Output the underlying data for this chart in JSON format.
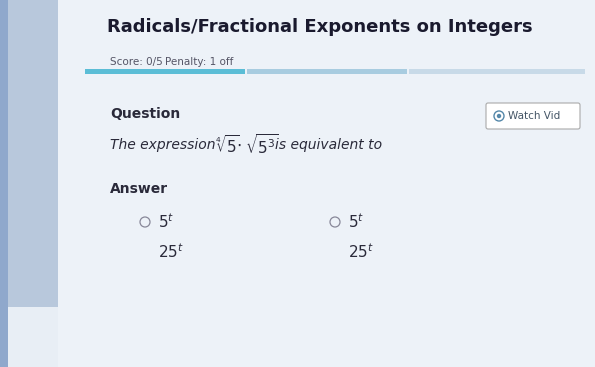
{
  "title": "Radicals/Fractional Exponents on Integers",
  "score_text": "Score: 0/5",
  "penalty_text": "Penalty: 1 off",
  "question_label": "Question",
  "answer_label": "Answer",
  "watch_button": "◎  Watch Vid",
  "bg_color": "#dde4ed",
  "main_bg": "#e8eef5",
  "white_area": "#eef2f7",
  "left_strip_color": "#8fa8cc",
  "left_bg_color": "#b8c8dc",
  "progress_bar_filled": "#5bbdd6",
  "progress_bar_seg2": "#a8cce0",
  "progress_bar_seg3": "#c8dae8",
  "title_color": "#1a1a2e",
  "text_color": "#2a2a3a",
  "score_color": "#555566",
  "watch_btn_border": "#aaaaaa",
  "watch_btn_text": "#445566",
  "watch_icon_color": "#5588aa"
}
